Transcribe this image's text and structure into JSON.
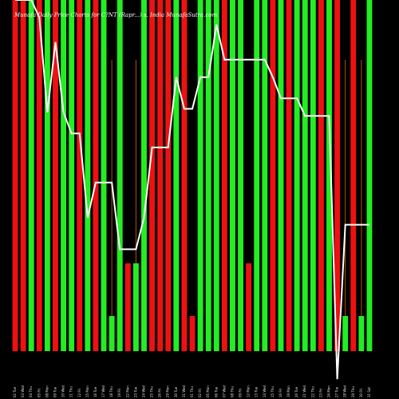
{
  "chart_data": {
    "type": "bar",
    "title": "Munafa Daily Price Charts for C?NT (Rapr...) s. India MunafaSutra.com",
    "xlabel": "",
    "ylabel": "",
    "categories": [
      "02 Tue",
      "03 Wed",
      "04 Thu",
      "05 Fri",
      "08 Mon",
      "09 Tue",
      "10 Wed",
      "11 Thu",
      "12 Fri",
      "15 Mon",
      "16 Tue",
      "17 Wed",
      "18 Thu",
      "19 Fri",
      "22 Mon",
      "23 Tue",
      "24 Wed",
      "25 Thu",
      "26 Fri",
      "29 Mon",
      "30 Tue",
      "31 Wed",
      "01 Thu",
      "02 Fri",
      "05 Mon",
      "06 Tue",
      "07 Wed",
      "08 Thu",
      "09 Fri",
      "12 Mon",
      "13 Tue",
      "14 Wed",
      "15 Thu",
      "16 Fri",
      "19 Mon",
      "20 Tue",
      "21 Wed",
      "22 Thu",
      "23 Fri",
      "26 Mon",
      "27 Tue",
      "28 Wed",
      "29 Thu",
      "30 Fri",
      "31 Sat"
    ],
    "bar_colors": [
      "red",
      "red",
      "green",
      "red",
      "green",
      "red",
      "green",
      "green",
      "red",
      "green",
      "red",
      "green",
      "green",
      "green",
      "red",
      "green",
      "green",
      "red",
      "red",
      "red",
      "green",
      "red",
      "red",
      "green",
      "green",
      "green",
      "red",
      "green",
      "green",
      "red",
      "green",
      "green",
      "red",
      "green",
      "red",
      "green",
      "green",
      "green",
      "red",
      "green",
      "red",
      "green",
      "red",
      "green",
      "green"
    ],
    "volume": [
      100,
      100,
      100,
      100,
      100,
      100,
      100,
      100,
      100,
      100,
      100,
      100,
      10,
      100,
      25,
      25,
      100,
      100,
      100,
      100,
      100,
      100,
      10,
      100,
      100,
      100,
      100,
      100,
      100,
      25,
      100,
      100,
      100,
      100,
      100,
      100,
      100,
      100,
      100,
      100,
      100,
      10,
      100,
      10,
      100
    ],
    "price_line": [
      100,
      100,
      100,
      95,
      68,
      88,
      68,
      62,
      62,
      38,
      48,
      48,
      48,
      29,
      29,
      29,
      38,
      58,
      58,
      58,
      78,
      69,
      69,
      78,
      78,
      93,
      83,
      83,
      83,
      83,
      83,
      83,
      78,
      72,
      72,
      72,
      67,
      67,
      67,
      67,
      -8,
      36,
      36,
      36,
      36
    ],
    "ylim": [
      0,
      100
    ],
    "colors": {
      "green": "#22ee22",
      "red": "#ee1111",
      "line": "#ffffff",
      "background": "#000000",
      "orange_line": "#b45309"
    }
  }
}
